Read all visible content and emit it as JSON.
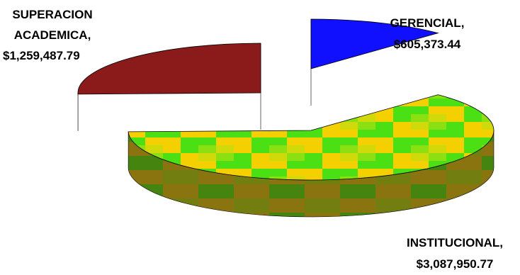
{
  "chart_data": {
    "type": "pie",
    "style": "3d-exploded",
    "slices": [
      {
        "label": "GERENCIAL,",
        "value_text": "$605,373.44",
        "value": 605373.44,
        "color": "#1010ff",
        "side_color": "#0c1280"
      },
      {
        "label": "INSTITUCIONAL,",
        "value_text": "$3,087,950.77",
        "value": 3087950.77,
        "color": "#f5d000",
        "accent_color": "#33e000",
        "side_color": "#8a7010"
      },
      {
        "label": "SUPERACION ACADEMICA,",
        "value_text": "$1,259,487.79",
        "value": 1259487.79,
        "color": "#8b1a1a",
        "side_color": "#4a0e0e"
      }
    ],
    "legend": "none",
    "data_labels": "outside"
  }
}
